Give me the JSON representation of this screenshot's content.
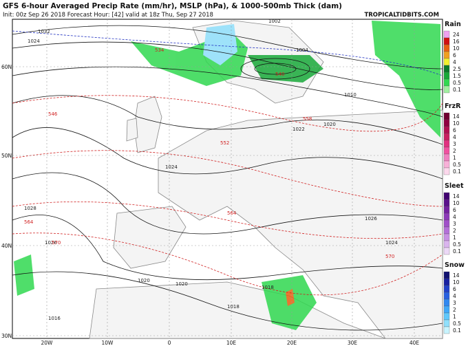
{
  "header": {
    "title": "GFS 6-hour Averaged Precip Rate (mm/hr), MSLP (hPa), & 1000-500mb Thick (dam)",
    "subtitle": "Init: 00z Sep 26 2018   Forecast Hour: [42]   valid at 18z Thu, Sep 27 2018",
    "site": "TROPICALTIDBITS.COM"
  },
  "latitudes": [
    "60N",
    "50N",
    "40N",
    "30N"
  ],
  "longitudes": [
    "20W",
    "10W",
    "0",
    "10E",
    "20E",
    "30E",
    "40E"
  ],
  "legend": [
    {
      "title": "Rain",
      "labels": [
        "24",
        "16",
        "10",
        "6",
        "4",
        "2.5",
        "1.5",
        "0.5",
        "0.1"
      ],
      "colors": [
        "#f0a0f0",
        "#d01010",
        "#e86010",
        "#f0a020",
        "#f0f030",
        "#0a7a2a",
        "#18a838",
        "#30d850",
        "#a0f0a0"
      ]
    },
    {
      "title": "FrzR",
      "labels": [
        "14",
        "10",
        "6",
        "4",
        "3",
        "2",
        "1",
        "0.5",
        "0.1"
      ],
      "colors": [
        "#700030",
        "#900040",
        "#b01050",
        "#c82060",
        "#e03080",
        "#f050a0",
        "#f080c0",
        "#f8b0d8",
        "#fcd8ec"
      ]
    },
    {
      "title": "Sleet",
      "labels": [
        "14",
        "10",
        "6",
        "4",
        "3",
        "2",
        "1",
        "0.5",
        "0.1"
      ],
      "colors": [
        "#400070",
        "#5a108a",
        "#7420a0",
        "#8c38b8",
        "#a050c8",
        "#b470d8",
        "#c890e4",
        "#dab4ee",
        "#ecd8f6"
      ]
    },
    {
      "title": "Snow",
      "labels": [
        "14",
        "10",
        "6",
        "4",
        "3",
        "2",
        "1",
        "0.5",
        "0.1"
      ],
      "colors": [
        "#101070",
        "#1820a0",
        "#2040c8",
        "#2860e0",
        "#3088f0",
        "#40a8f8",
        "#60c8fc",
        "#90e0fc",
        "#c8f4fe"
      ]
    }
  ],
  "isobar_labels": [
    "1032",
    "1024",
    "1028",
    "1026",
    "1024",
    "1018",
    "1020",
    "1010",
    "1004",
    "1002",
    "1022",
    "1020",
    "1016",
    "1026",
    "1024",
    "1020",
    "1018"
  ],
  "thickness_labels": [
    "546",
    "564",
    "570",
    "558",
    "534",
    "540",
    "552",
    "564",
    "570"
  ]
}
